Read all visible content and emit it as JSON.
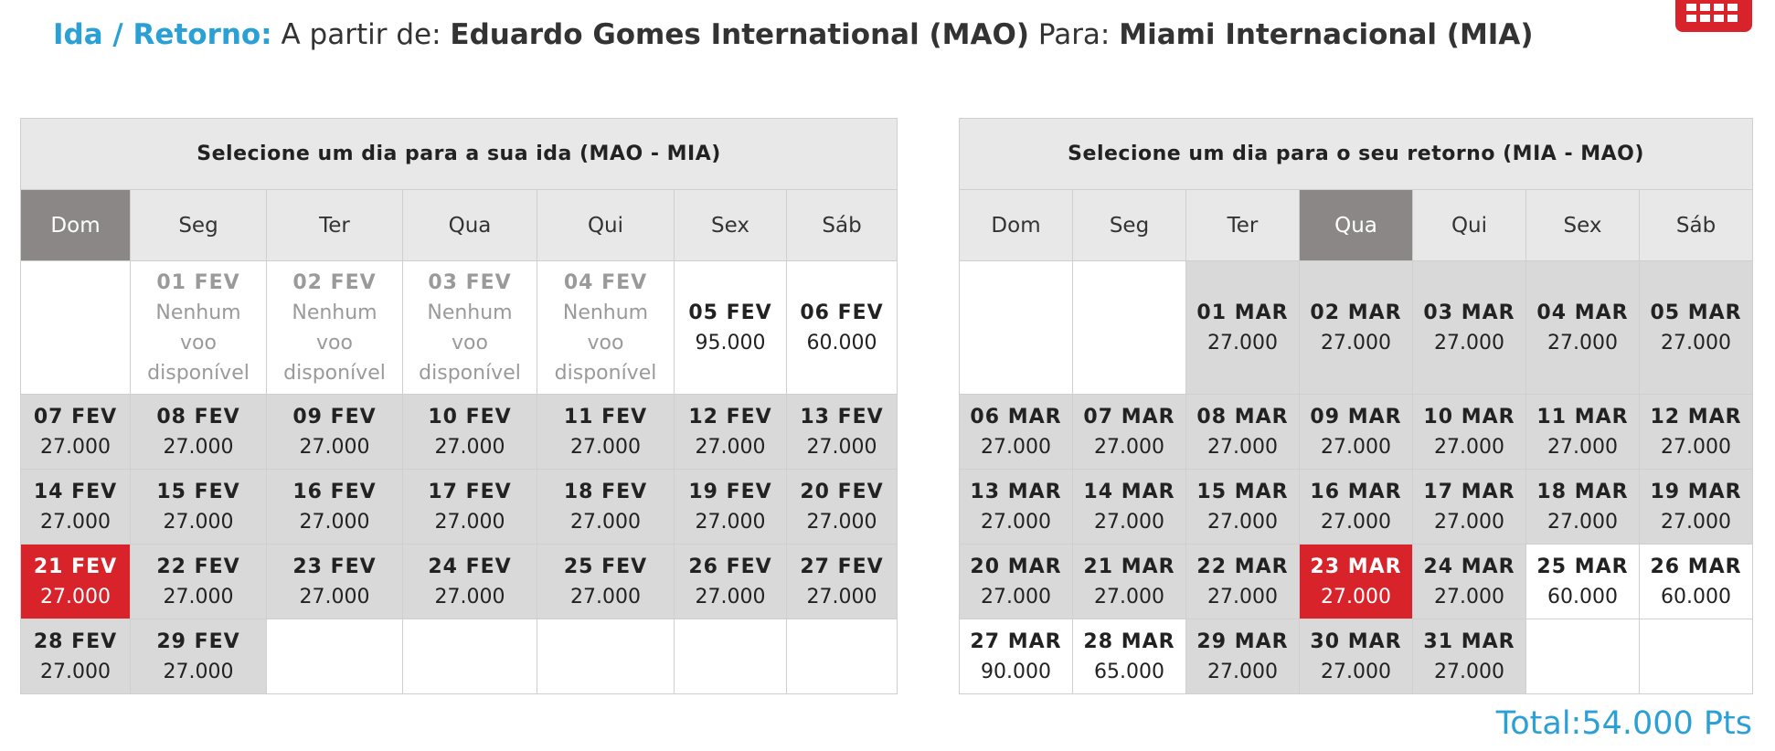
{
  "header": {
    "label": "Ida / Retorno:",
    "from_label": "A partir de:",
    "from": "Eduardo Gomes International (MAO)",
    "to_label": "Para:",
    "to": "Miami Internacional (MIA)"
  },
  "calendars": [
    {
      "title": "Selecione um dia para a sua ida (MAO - MIA)",
      "weekdays": [
        "Dom",
        "Seg",
        "Ter",
        "Qua",
        "Qui",
        "Sex",
        "Sáb"
      ],
      "selected_weekday": 0,
      "weeks": [
        [
          null,
          {
            "date": "01 FEV",
            "price": "Nenhum voo disponível",
            "state": "none"
          },
          {
            "date": "02 FEV",
            "price": "Nenhum voo disponível",
            "state": "none"
          },
          {
            "date": "03 FEV",
            "price": "Nenhum voo disponível",
            "state": "none"
          },
          {
            "date": "04 FEV",
            "price": "Nenhum voo disponível",
            "state": "none"
          },
          {
            "date": "05 FEV",
            "price": "95.000",
            "state": "high"
          },
          {
            "date": "06 FEV",
            "price": "60.000",
            "state": "high"
          }
        ],
        [
          {
            "date": "07 FEV",
            "price": "27.000",
            "state": "low"
          },
          {
            "date": "08 FEV",
            "price": "27.000",
            "state": "low"
          },
          {
            "date": "09 FEV",
            "price": "27.000",
            "state": "low"
          },
          {
            "date": "10 FEV",
            "price": "27.000",
            "state": "low"
          },
          {
            "date": "11 FEV",
            "price": "27.000",
            "state": "low"
          },
          {
            "date": "12 FEV",
            "price": "27.000",
            "state": "low"
          },
          {
            "date": "13 FEV",
            "price": "27.000",
            "state": "low"
          }
        ],
        [
          {
            "date": "14 FEV",
            "price": "27.000",
            "state": "low"
          },
          {
            "date": "15 FEV",
            "price": "27.000",
            "state": "low"
          },
          {
            "date": "16 FEV",
            "price": "27.000",
            "state": "low"
          },
          {
            "date": "17 FEV",
            "price": "27.000",
            "state": "low"
          },
          {
            "date": "18 FEV",
            "price": "27.000",
            "state": "low"
          },
          {
            "date": "19 FEV",
            "price": "27.000",
            "state": "low"
          },
          {
            "date": "20 FEV",
            "price": "27.000",
            "state": "low"
          }
        ],
        [
          {
            "date": "21 FEV",
            "price": "27.000",
            "state": "selected"
          },
          {
            "date": "22 FEV",
            "price": "27.000",
            "state": "low"
          },
          {
            "date": "23 FEV",
            "price": "27.000",
            "state": "low"
          },
          {
            "date": "24 FEV",
            "price": "27.000",
            "state": "low"
          },
          {
            "date": "25 FEV",
            "price": "27.000",
            "state": "low"
          },
          {
            "date": "26 FEV",
            "price": "27.000",
            "state": "low"
          },
          {
            "date": "27 FEV",
            "price": "27.000",
            "state": "low"
          }
        ],
        [
          {
            "date": "28 FEV",
            "price": "27.000",
            "state": "low"
          },
          {
            "date": "29 FEV",
            "price": "27.000",
            "state": "low"
          },
          null,
          null,
          null,
          null,
          null
        ]
      ]
    },
    {
      "title": "Selecione um dia para o seu retorno (MIA - MAO)",
      "weekdays": [
        "Dom",
        "Seg",
        "Ter",
        "Qua",
        "Qui",
        "Sex",
        "Sáb"
      ],
      "selected_weekday": 3,
      "weeks": [
        [
          null,
          null,
          {
            "date": "01 MAR",
            "price": "27.000",
            "state": "low"
          },
          {
            "date": "02 MAR",
            "price": "27.000",
            "state": "low"
          },
          {
            "date": "03 MAR",
            "price": "27.000",
            "state": "low"
          },
          {
            "date": "04 MAR",
            "price": "27.000",
            "state": "low"
          },
          {
            "date": "05 MAR",
            "price": "27.000",
            "state": "low"
          }
        ],
        [
          {
            "date": "06 MAR",
            "price": "27.000",
            "state": "low"
          },
          {
            "date": "07 MAR",
            "price": "27.000",
            "state": "low"
          },
          {
            "date": "08 MAR",
            "price": "27.000",
            "state": "low"
          },
          {
            "date": "09 MAR",
            "price": "27.000",
            "state": "low"
          },
          {
            "date": "10 MAR",
            "price": "27.000",
            "state": "low"
          },
          {
            "date": "11 MAR",
            "price": "27.000",
            "state": "low"
          },
          {
            "date": "12 MAR",
            "price": "27.000",
            "state": "low"
          }
        ],
        [
          {
            "date": "13 MAR",
            "price": "27.000",
            "state": "low"
          },
          {
            "date": "14 MAR",
            "price": "27.000",
            "state": "low"
          },
          {
            "date": "15 MAR",
            "price": "27.000",
            "state": "low"
          },
          {
            "date": "16 MAR",
            "price": "27.000",
            "state": "low"
          },
          {
            "date": "17 MAR",
            "price": "27.000",
            "state": "low"
          },
          {
            "date": "18 MAR",
            "price": "27.000",
            "state": "low"
          },
          {
            "date": "19 MAR",
            "price": "27.000",
            "state": "low"
          }
        ],
        [
          {
            "date": "20 MAR",
            "price": "27.000",
            "state": "low"
          },
          {
            "date": "21 MAR",
            "price": "27.000",
            "state": "low"
          },
          {
            "date": "22 MAR",
            "price": "27.000",
            "state": "low"
          },
          {
            "date": "23 MAR",
            "price": "27.000",
            "state": "selected"
          },
          {
            "date": "24 MAR",
            "price": "27.000",
            "state": "low"
          },
          {
            "date": "25 MAR",
            "price": "60.000",
            "state": "high"
          },
          {
            "date": "26 MAR",
            "price": "60.000",
            "state": "high"
          }
        ],
        [
          {
            "date": "27 MAR",
            "price": "90.000",
            "state": "high"
          },
          {
            "date": "28 MAR",
            "price": "65.000",
            "state": "high"
          },
          {
            "date": "29 MAR",
            "price": "27.000",
            "state": "low"
          },
          {
            "date": "30 MAR",
            "price": "27.000",
            "state": "low"
          },
          {
            "date": "31 MAR",
            "price": "27.000",
            "state": "low"
          },
          null,
          null
        ]
      ]
    }
  ],
  "total": "Total:54.000 Pts"
}
